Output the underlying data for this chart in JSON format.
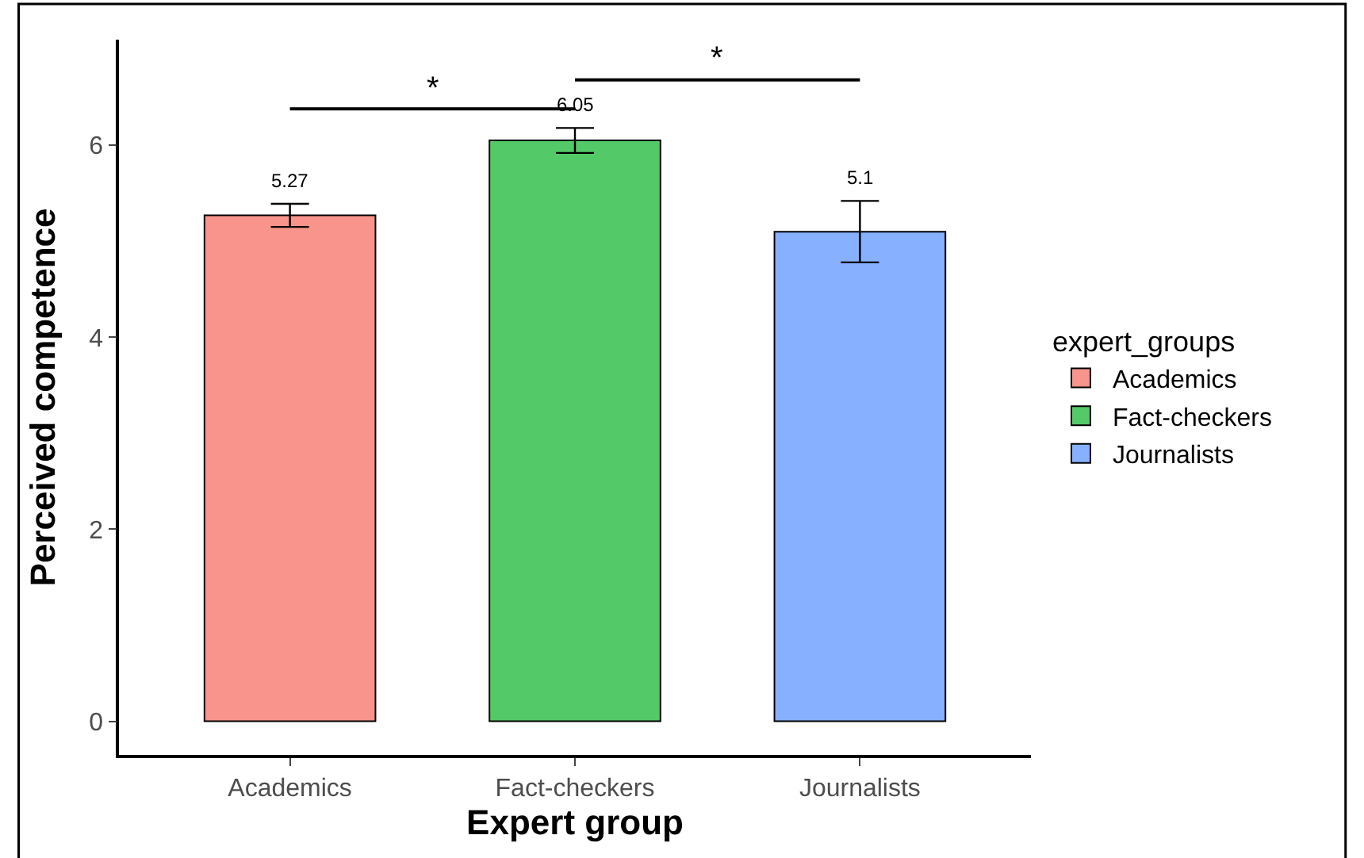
{
  "chart_data": {
    "type": "bar",
    "xlabel": "Expert group",
    "ylabel": "Perceived competence",
    "legend_title": "expert_groups",
    "categories": [
      "Academics",
      "Fact-checkers",
      "Journalists"
    ],
    "series": [
      {
        "name": "Academics",
        "color": "#f8948b",
        "values": [
          5.27,
          null,
          null
        ],
        "errors": [
          0.12,
          null,
          null
        ]
      },
      {
        "name": "Fact-checkers",
        "color": "#53c967",
        "values": [
          null,
          6.05,
          null
        ],
        "errors": [
          null,
          0.13,
          null
        ]
      },
      {
        "name": "Journalists",
        "color": "#87b0ff",
        "values": [
          null,
          null,
          5.1
        ],
        "errors": [
          null,
          null,
          0.32
        ]
      }
    ],
    "data_labels": true,
    "ylim": [
      -0.35,
      7.1
    ],
    "yticks": [
      0,
      2,
      4,
      6
    ],
    "legend": "right",
    "annotations": [
      "*",
      "*"
    ]
  }
}
